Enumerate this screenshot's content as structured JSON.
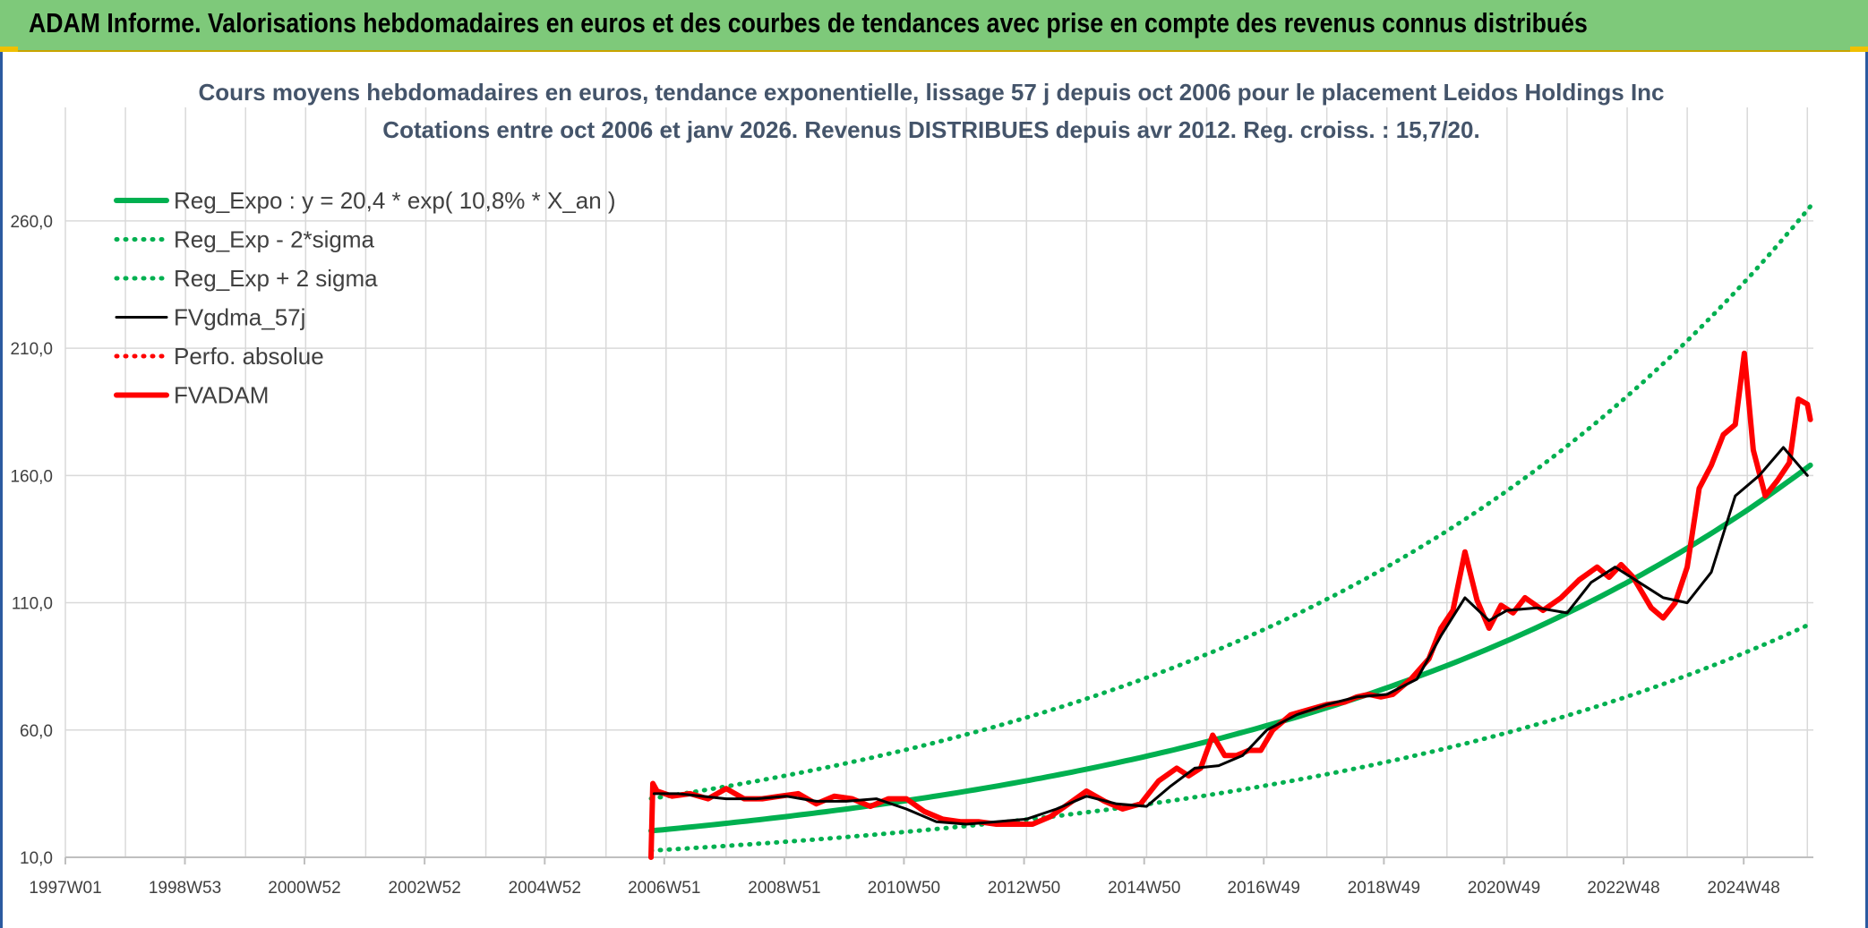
{
  "header": {
    "title": "ADAM Informe. Valorisations hebdomadaires en euros et des courbes de tendances avec prise en compte des revenus connus distribués"
  },
  "chart_data": {
    "type": "line",
    "title": "Cours moyens hebdomadaires en euros, tendance exponentielle, lissage 57 j depuis oct 2006 pour le placement Leidos Holdings Inc",
    "subtitle": "Cotations entre oct 2006 et janv 2026. Revenus DISTRIBUES depuis avr 2012. Reg. croiss. : 15,7/20.",
    "xlabel": "",
    "ylabel": "",
    "ylim": [
      10,
      280
    ],
    "yticks": [
      "10,0",
      "60,0",
      "110,0",
      "160,0",
      "210,0",
      "260,0"
    ],
    "ytick_values": [
      10,
      60,
      110,
      160,
      210,
      260
    ],
    "xlim": [
      1997.0,
      2026.1
    ],
    "xticks": [
      "1997W01",
      "1998W53",
      "2000W52",
      "2002W52",
      "2004W52",
      "2006W51",
      "2008W51",
      "2010W50",
      "2012W50",
      "2014W50",
      "2016W49",
      "2018W49",
      "2020W49",
      "2022W48",
      "2024W48"
    ],
    "xtick_values": [
      1997.0,
      1998.99,
      2000.98,
      2002.98,
      2004.98,
      2006.97,
      2008.97,
      2010.96,
      2012.96,
      2014.96,
      2016.95,
      2018.95,
      2020.95,
      2022.94,
      2024.94
    ],
    "grid": true,
    "legend_position": "top-left",
    "colors": {
      "trend": "#00b050",
      "fv": "#000000",
      "price": "#ff0000",
      "grid": "#d9d9d9"
    },
    "series": [
      {
        "name": "Reg_Expo : y = 20,4 * exp( 10,8% *  X_an )",
        "style": "solid-thick",
        "color": "#00b050",
        "formula": {
          "a": 20.4,
          "rate": 0.108,
          "x0": 2006.75
        },
        "x_range": [
          2006.75,
          2026.05
        ]
      },
      {
        "name": "Reg_Exp - 2*sigma",
        "style": "dotted",
        "color": "#00b050",
        "formula": {
          "a": 20.4,
          "rate": 0.108,
          "x0": 2006.75,
          "factor": 0.62
        },
        "x_range": [
          2006.75,
          2026.05
        ]
      },
      {
        "name": "Reg_Exp + 2 sigma",
        "style": "dotted",
        "color": "#00b050",
        "formula": {
          "a": 20.4,
          "rate": 0.108,
          "x0": 2006.75,
          "factor": 1.62
        },
        "x_range": [
          2006.75,
          2026.05
        ]
      },
      {
        "name": "FVgdma_57j",
        "style": "solid",
        "color": "#000000",
        "x": [
          2006.8,
          2007.2,
          2007.6,
          2008.0,
          2008.5,
          2009.0,
          2009.5,
          2010.0,
          2010.5,
          2011.0,
          2011.5,
          2012.0,
          2012.5,
          2013.0,
          2013.5,
          2014.0,
          2014.5,
          2015.0,
          2015.4,
          2015.8,
          2016.2,
          2016.6,
          2017.0,
          2017.5,
          2018.0,
          2018.5,
          2019.0,
          2019.5,
          2019.9,
          2020.3,
          2020.7,
          2021.0,
          2021.5,
          2022.0,
          2022.4,
          2022.8,
          2023.2,
          2023.6,
          2024.0,
          2024.4,
          2024.8,
          2025.2,
          2025.6,
          2026.0
        ],
        "y": [
          35,
          35,
          34,
          33,
          33,
          34,
          32,
          32,
          33,
          29,
          24,
          23,
          24,
          25,
          29,
          34,
          31,
          30,
          38,
          45,
          46,
          50,
          60,
          66,
          70,
          73,
          74,
          80,
          97,
          112,
          103,
          107,
          108,
          106,
          118,
          124,
          118,
          112,
          110,
          122,
          152,
          160,
          171,
          160
        ]
      },
      {
        "name": "Perfo. absolue",
        "style": "dotted",
        "color": "#ff0000",
        "values_hidden_behind": "FVADAM"
      },
      {
        "name": "FVADAM",
        "style": "solid-thick",
        "color": "#ff0000",
        "x": [
          2006.75,
          2006.78,
          2006.85,
          2007.1,
          2007.4,
          2007.7,
          2008.0,
          2008.3,
          2008.6,
          2008.9,
          2009.2,
          2009.5,
          2009.8,
          2010.1,
          2010.4,
          2010.7,
          2011.0,
          2011.3,
          2011.6,
          2011.9,
          2012.2,
          2012.5,
          2012.8,
          2013.1,
          2013.4,
          2013.7,
          2014.0,
          2014.3,
          2014.6,
          2014.9,
          2015.2,
          2015.5,
          2015.7,
          2015.9,
          2016.1,
          2016.3,
          2016.5,
          2016.7,
          2016.9,
          2017.1,
          2017.4,
          2017.7,
          2018.0,
          2018.3,
          2018.5,
          2018.7,
          2018.9,
          2019.1,
          2019.4,
          2019.7,
          2019.9,
          2020.1,
          2020.3,
          2020.5,
          2020.7,
          2020.9,
          2021.1,
          2021.3,
          2021.6,
          2021.9,
          2022.2,
          2022.5,
          2022.7,
          2022.9,
          2023.1,
          2023.4,
          2023.6,
          2023.8,
          2024.0,
          2024.2,
          2024.4,
          2024.6,
          2024.8,
          2024.95,
          2025.1,
          2025.3,
          2025.5,
          2025.7,
          2025.85,
          2026.0,
          2026.05
        ],
        "y": [
          10,
          39,
          36,
          34,
          35,
          33,
          37,
          33,
          33,
          34,
          35,
          31,
          34,
          33,
          30,
          33,
          33,
          28,
          25,
          24,
          24,
          23,
          23,
          23,
          26,
          31,
          36,
          32,
          29,
          31,
          40,
          45,
          42,
          45,
          58,
          50,
          50,
          52,
          52,
          60,
          66,
          68,
          70,
          71,
          73,
          74,
          73,
          74,
          80,
          88,
          100,
          107,
          130,
          111,
          100,
          109,
          106,
          112,
          107,
          112,
          119,
          124,
          120,
          125,
          120,
          108,
          104,
          110,
          124,
          155,
          164,
          176,
          180,
          208,
          170,
          152,
          158,
          165,
          190,
          188,
          182
        ]
      }
    ]
  }
}
